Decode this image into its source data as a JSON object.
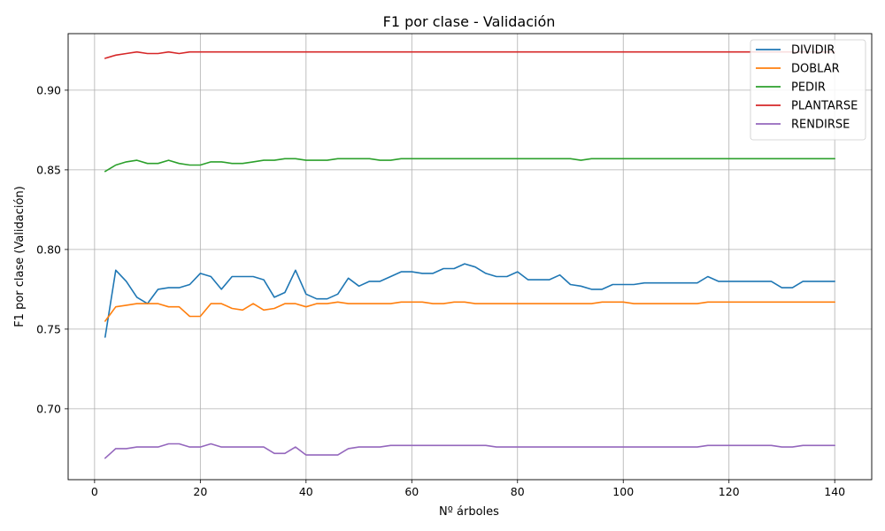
{
  "chart_data": {
    "type": "line",
    "title": "F1 por clase - Validación",
    "xlabel": "Nº árboles",
    "ylabel": "F1 por clase (Validación)",
    "xlim": [
      -5,
      147
    ],
    "ylim": [
      0.6555,
      0.9355
    ],
    "xticks": [
      0,
      20,
      40,
      60,
      80,
      100,
      120,
      140
    ],
    "yticks": [
      0.7,
      0.75,
      0.8,
      0.85,
      0.9
    ],
    "ytick_labels": [
      "0.70",
      "0.75",
      "0.80",
      "0.85",
      "0.90"
    ],
    "grid": true,
    "legend_position": "top-right",
    "x": [
      2,
      4,
      6,
      8,
      10,
      12,
      14,
      16,
      18,
      20,
      22,
      24,
      26,
      28,
      30,
      32,
      34,
      36,
      38,
      40,
      42,
      44,
      46,
      48,
      50,
      52,
      54,
      56,
      58,
      60,
      62,
      64,
      66,
      68,
      70,
      72,
      74,
      76,
      78,
      80,
      82,
      84,
      86,
      88,
      90,
      92,
      94,
      96,
      98,
      100,
      102,
      104,
      106,
      108,
      110,
      112,
      114,
      116,
      118,
      120,
      122,
      124,
      126,
      128,
      130,
      132,
      134,
      136,
      138,
      140
    ],
    "series": [
      {
        "name": "DIVIDIR",
        "color": "#1f77b4",
        "values": [
          0.745,
          0.787,
          0.78,
          0.77,
          0.766,
          0.775,
          0.776,
          0.776,
          0.778,
          0.785,
          0.783,
          0.775,
          0.783,
          0.783,
          0.783,
          0.781,
          0.77,
          0.773,
          0.787,
          0.772,
          0.769,
          0.769,
          0.772,
          0.782,
          0.777,
          0.78,
          0.78,
          0.783,
          0.786,
          0.786,
          0.785,
          0.785,
          0.788,
          0.788,
          0.791,
          0.789,
          0.785,
          0.783,
          0.783,
          0.786,
          0.781,
          0.781,
          0.781,
          0.784,
          0.778,
          0.777,
          0.775,
          0.775,
          0.778,
          0.778,
          0.778,
          0.779,
          0.779,
          0.779,
          0.779,
          0.779,
          0.779,
          0.783,
          0.78,
          0.78,
          0.78,
          0.78,
          0.78,
          0.78,
          0.776,
          0.776,
          0.78,
          0.78,
          0.78,
          0.78
        ]
      },
      {
        "name": "DOBLAR",
        "color": "#ff7f0e",
        "values": [
          0.755,
          0.764,
          0.765,
          0.766,
          0.766,
          0.766,
          0.764,
          0.764,
          0.758,
          0.758,
          0.766,
          0.766,
          0.763,
          0.762,
          0.766,
          0.762,
          0.763,
          0.766,
          0.766,
          0.764,
          0.766,
          0.766,
          0.767,
          0.766,
          0.766,
          0.766,
          0.766,
          0.766,
          0.767,
          0.767,
          0.767,
          0.766,
          0.766,
          0.767,
          0.767,
          0.766,
          0.766,
          0.766,
          0.766,
          0.766,
          0.766,
          0.766,
          0.766,
          0.766,
          0.766,
          0.766,
          0.766,
          0.767,
          0.767,
          0.767,
          0.766,
          0.766,
          0.766,
          0.766,
          0.766,
          0.766,
          0.766,
          0.767,
          0.767,
          0.767,
          0.767,
          0.767,
          0.767,
          0.767,
          0.767,
          0.767,
          0.767,
          0.767,
          0.767,
          0.767
        ]
      },
      {
        "name": "PEDIR",
        "color": "#2ca02c",
        "values": [
          0.849,
          0.853,
          0.855,
          0.856,
          0.854,
          0.854,
          0.856,
          0.854,
          0.853,
          0.853,
          0.855,
          0.855,
          0.854,
          0.854,
          0.855,
          0.856,
          0.856,
          0.857,
          0.857,
          0.856,
          0.856,
          0.856,
          0.857,
          0.857,
          0.857,
          0.857,
          0.856,
          0.856,
          0.857,
          0.857,
          0.857,
          0.857,
          0.857,
          0.857,
          0.857,
          0.857,
          0.857,
          0.857,
          0.857,
          0.857,
          0.857,
          0.857,
          0.857,
          0.857,
          0.857,
          0.856,
          0.857,
          0.857,
          0.857,
          0.857,
          0.857,
          0.857,
          0.857,
          0.857,
          0.857,
          0.857,
          0.857,
          0.857,
          0.857,
          0.857,
          0.857,
          0.857,
          0.857,
          0.857,
          0.857,
          0.857,
          0.857,
          0.857,
          0.857,
          0.857
        ]
      },
      {
        "name": "PLANTARSE",
        "color": "#d62728",
        "values": [
          0.92,
          0.922,
          0.923,
          0.924,
          0.923,
          0.923,
          0.924,
          0.923,
          0.924,
          0.924,
          0.924,
          0.924,
          0.924,
          0.924,
          0.924,
          0.924,
          0.924,
          0.924,
          0.924,
          0.924,
          0.924,
          0.924,
          0.924,
          0.924,
          0.924,
          0.924,
          0.924,
          0.924,
          0.924,
          0.924,
          0.924,
          0.924,
          0.924,
          0.924,
          0.924,
          0.924,
          0.924,
          0.924,
          0.924,
          0.924,
          0.924,
          0.924,
          0.924,
          0.924,
          0.924,
          0.924,
          0.924,
          0.924,
          0.924,
          0.924,
          0.924,
          0.924,
          0.924,
          0.924,
          0.924,
          0.924,
          0.924,
          0.924,
          0.924,
          0.924,
          0.924,
          0.924,
          0.924,
          0.924,
          0.924,
          0.924,
          0.924,
          0.924,
          0.924,
          0.924
        ]
      },
      {
        "name": "RENDIRSE",
        "color": "#9467bd",
        "values": [
          0.669,
          0.675,
          0.675,
          0.676,
          0.676,
          0.676,
          0.678,
          0.678,
          0.676,
          0.676,
          0.678,
          0.676,
          0.676,
          0.676,
          0.676,
          0.676,
          0.672,
          0.672,
          0.676,
          0.671,
          0.671,
          0.671,
          0.671,
          0.675,
          0.676,
          0.676,
          0.676,
          0.677,
          0.677,
          0.677,
          0.677,
          0.677,
          0.677,
          0.677,
          0.677,
          0.677,
          0.677,
          0.676,
          0.676,
          0.676,
          0.676,
          0.676,
          0.676,
          0.676,
          0.676,
          0.676,
          0.676,
          0.676,
          0.676,
          0.676,
          0.676,
          0.676,
          0.676,
          0.676,
          0.676,
          0.676,
          0.676,
          0.677,
          0.677,
          0.677,
          0.677,
          0.677,
          0.677,
          0.677,
          0.676,
          0.676,
          0.677,
          0.677,
          0.677,
          0.677
        ]
      }
    ]
  }
}
